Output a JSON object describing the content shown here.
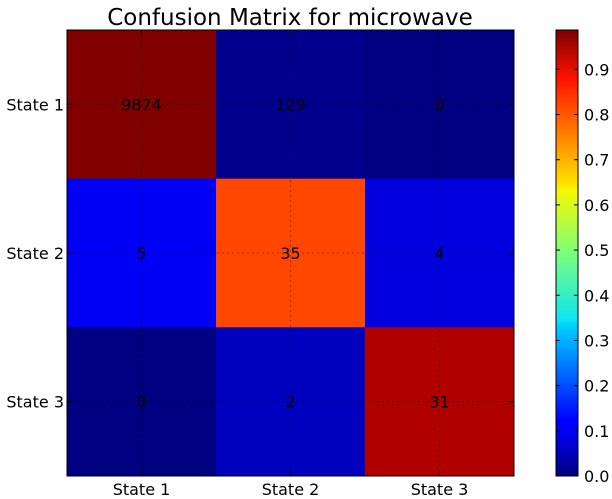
{
  "chart_data": {
    "type": "heatmap",
    "title": "Confusion Matrix for microwave",
    "xlabel": "",
    "ylabel": "",
    "x_categories": [
      "State 1",
      "State 2",
      "State 3"
    ],
    "y_categories": [
      "State 1",
      "State 2",
      "State 3"
    ],
    "counts": [
      [
        9874,
        129,
        0
      ],
      [
        5,
        35,
        4
      ],
      [
        0,
        2,
        31
      ]
    ],
    "normalized": [
      [
        0.987,
        0.013,
        0.0
      ],
      [
        0.114,
        0.795,
        0.091
      ],
      [
        0.0,
        0.061,
        0.939
      ]
    ],
    "colormap": "jet",
    "colorbar": {
      "vmin": 0.0,
      "vmax": 0.987,
      "ticks": [
        "0.0",
        "0.1",
        "0.2",
        "0.3",
        "0.4",
        "0.5",
        "0.6",
        "0.7",
        "0.8",
        "0.9"
      ]
    },
    "grid": true
  }
}
